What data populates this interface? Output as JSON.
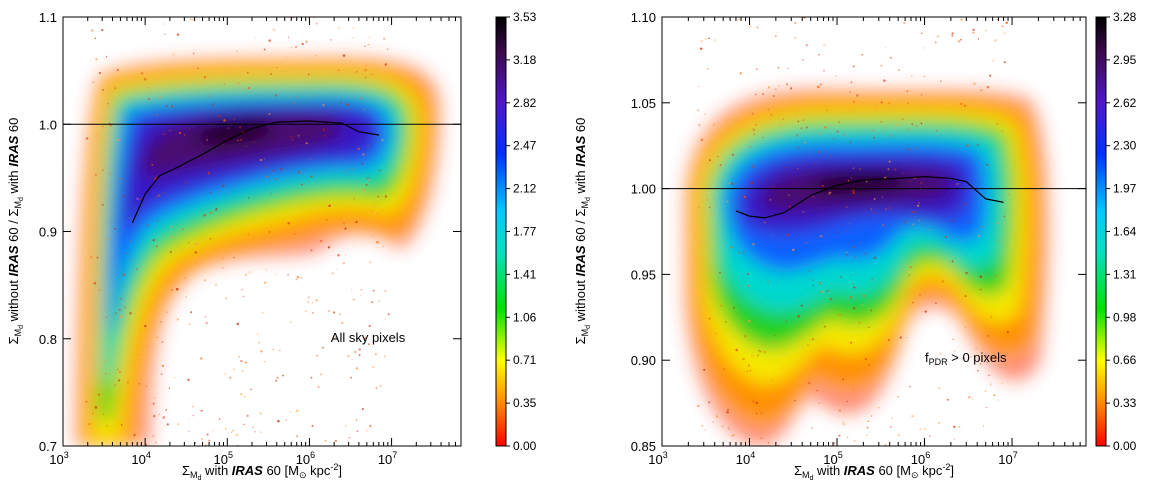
{
  "chart_data": [
    {
      "type": "heatmap",
      "annotation": "All sky pixels",
      "xlabel": {
        "pre": "Σ",
        "sub": "M",
        "subsub": "d",
        "mid": " with ",
        "bold": "IRAS",
        "post": " 60 [M",
        "sun": "⊙",
        "post2": " kpc",
        "sup": "-2",
        "end": "]"
      },
      "ylabel": {
        "s1": "Σ",
        "sub1": "M",
        "subsub1": "d",
        "w1": " without ",
        "b1": "IRAS",
        "w2": " 60 / Σ",
        "sub2": "M",
        "subsub2": "d",
        "w3": " with ",
        "b2": "IRAS",
        "w4": " 60"
      },
      "xscale": "log",
      "xlim": [
        1000,
        70000000
      ],
      "ylim": [
        0.7,
        1.1
      ],
      "xticks": [
        {
          "v": 1000,
          "m": "10",
          "e": "3"
        },
        {
          "v": 10000,
          "m": "10",
          "e": "4"
        },
        {
          "v": 100000,
          "m": "10",
          "e": "5"
        },
        {
          "v": 1000000,
          "m": "10",
          "e": "6"
        },
        {
          "v": 10000000,
          "m": "10",
          "e": "7"
        }
      ],
      "yticks": [
        {
          "v": 0.7,
          "t": "0.7"
        },
        {
          "v": 0.8,
          "t": "0.8"
        },
        {
          "v": 0.9,
          "t": "0.9"
        },
        {
          "v": 1.0,
          "t": "1.0"
        },
        {
          "v": 1.1,
          "t": "1.1"
        }
      ],
      "reference_line": 1.0,
      "colorbar": {
        "range": [
          0.0,
          3.53
        ],
        "ticks": [
          "0.00",
          "0.35",
          "0.71",
          "1.06",
          "1.41",
          "1.77",
          "2.12",
          "2.47",
          "2.82",
          "3.18",
          "3.53"
        ]
      },
      "running_median": {
        "x": [
          7000,
          10000,
          15000,
          25000,
          50000,
          100000,
          200000,
          400000,
          1000000,
          2500000,
          4000000,
          7000000
        ],
        "y": [
          0.908,
          0.935,
          0.952,
          0.96,
          0.972,
          0.985,
          0.996,
          1.002,
          1.003,
          1.001,
          0.993,
          0.99
        ]
      },
      "density_core": {
        "x": [
          6000,
          3000000
        ],
        "y": [
          0.975,
          1.012
        ]
      }
    },
    {
      "type": "heatmap",
      "annotation": {
        "pre": "f",
        "sub": "PDR",
        "post": " > 0 pixels"
      },
      "xlabel": {
        "pre": "Σ",
        "sub": "M",
        "subsub": "d",
        "mid": " with ",
        "bold": "IRAS",
        "post": " 60 [M",
        "sun": "⊙",
        "post2": " kpc",
        "sup": "-2",
        "end": "]"
      },
      "ylabel": {
        "s1": "Σ",
        "sub1": "M",
        "subsub1": "d",
        "w1": " without ",
        "b1": "IRAS",
        "w2": " 60 / Σ",
        "sub2": "M",
        "subsub2": "d",
        "w3": " with ",
        "b2": "IRAS",
        "w4": " 60"
      },
      "xscale": "log",
      "xlim": [
        1000,
        70000000
      ],
      "ylim": [
        0.85,
        1.1
      ],
      "xticks": [
        {
          "v": 1000,
          "m": "10",
          "e": "3"
        },
        {
          "v": 10000,
          "m": "10",
          "e": "4"
        },
        {
          "v": 100000,
          "m": "10",
          "e": "5"
        },
        {
          "v": 1000000,
          "m": "10",
          "e": "6"
        },
        {
          "v": 10000000,
          "m": "10",
          "e": "7"
        }
      ],
      "yticks": [
        {
          "v": 0.85,
          "t": "0.85"
        },
        {
          "v": 0.9,
          "t": "0.90"
        },
        {
          "v": 0.95,
          "t": "0.95"
        },
        {
          "v": 1.0,
          "t": "1.00"
        },
        {
          "v": 1.05,
          "t": "1.05"
        },
        {
          "v": 1.1,
          "t": "1.10"
        }
      ],
      "reference_line": 1.0,
      "colorbar": {
        "range": [
          0.0,
          3.28
        ],
        "ticks": [
          "0.00",
          "0.33",
          "0.66",
          "0.98",
          "1.31",
          "1.64",
          "1.97",
          "2.30",
          "2.62",
          "2.95",
          "3.28"
        ]
      },
      "running_median": {
        "x": [
          7000,
          10000,
          15000,
          25000,
          50000,
          100000,
          200000,
          500000,
          1000000,
          2000000,
          3000000,
          5000000,
          8000000
        ],
        "y": [
          0.987,
          0.984,
          0.983,
          0.986,
          0.996,
          1.002,
          1.005,
          1.006,
          1.007,
          1.006,
          1.004,
          0.994,
          0.992
        ]
      },
      "density_core": {
        "x": [
          8000,
          3000000
        ],
        "y": [
          0.985,
          1.012
        ]
      }
    }
  ]
}
